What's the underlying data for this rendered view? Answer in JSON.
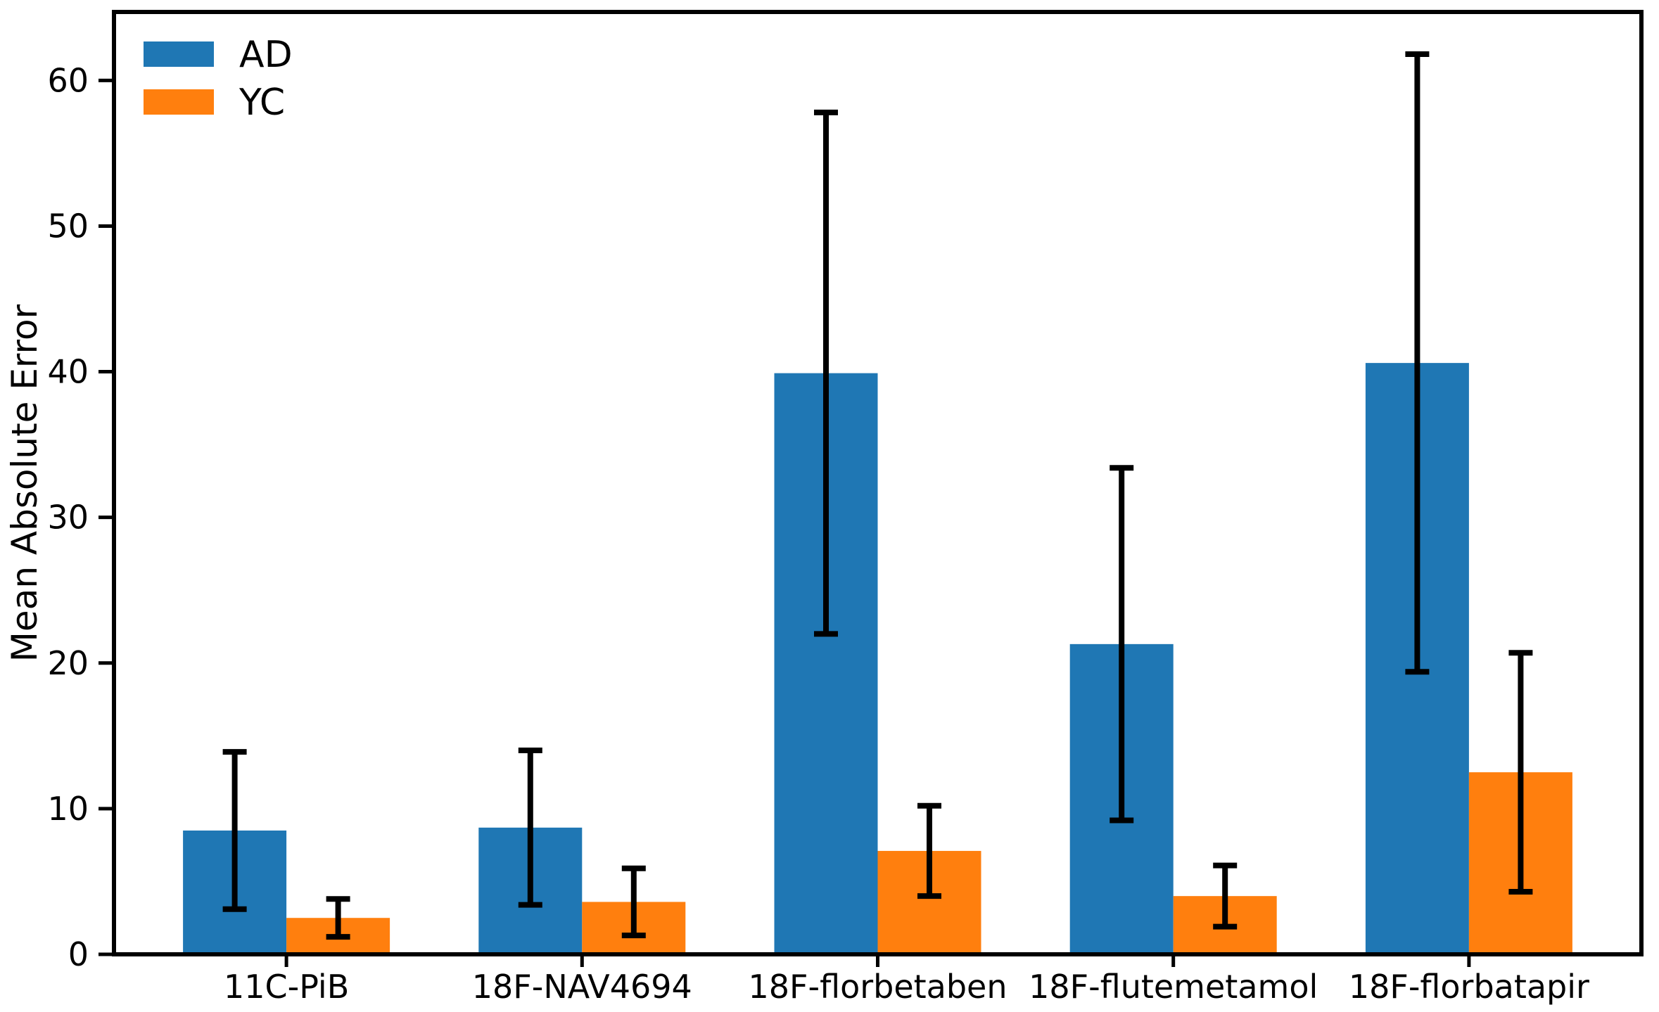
{
  "figure": {
    "background_color": "#ffffff",
    "axis_color": "#000000"
  },
  "chart_data": {
    "type": "bar",
    "title": "",
    "xlabel": "",
    "ylabel": "Mean Absolute Error",
    "categories": [
      "11C-PiB",
      "18F-NAV4694",
      "18F-florbetaben",
      "18F-flutemetamol",
      "18F-florbatapir"
    ],
    "series": [
      {
        "name": "AD",
        "color": "#1f77b4",
        "values": [
          8.5,
          8.7,
          39.9,
          21.3,
          40.6
        ],
        "errors": [
          5.4,
          5.3,
          17.9,
          12.1,
          21.2
        ]
      },
      {
        "name": "YC",
        "color": "#ff7f0e",
        "values": [
          2.5,
          3.6,
          7.1,
          4.0,
          12.5
        ],
        "errors": [
          1.3,
          2.3,
          3.1,
          2.1,
          8.2
        ]
      }
    ],
    "error_bars": true,
    "error_bar_color": "#000000",
    "ylim": [
      0,
      64.7
    ],
    "yticks": [
      0,
      10,
      20,
      30,
      40,
      50,
      60
    ],
    "grid": false,
    "legend_position": "upper left"
  }
}
